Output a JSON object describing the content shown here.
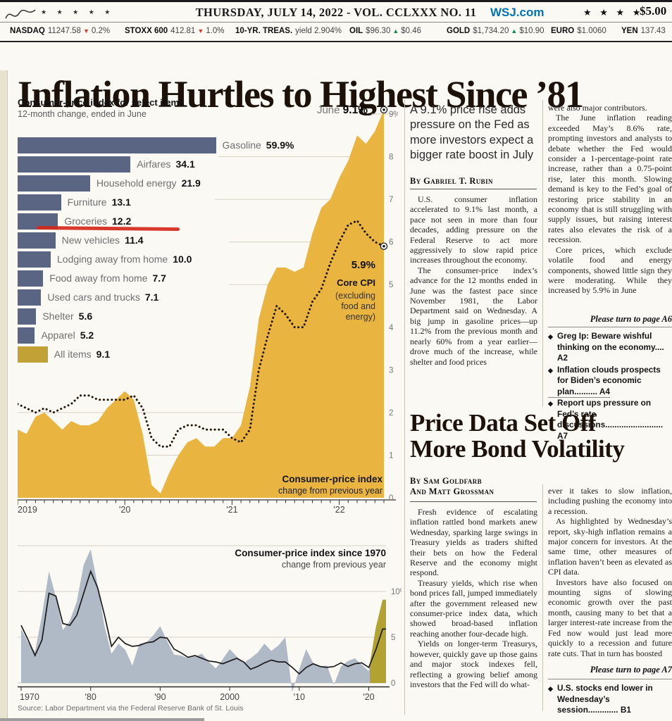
{
  "colors": {
    "gold": "#e9b440",
    "gold_dark": "#c2a136",
    "slate_blue": "#5a6584",
    "olive": "#b1a232",
    "gray_blue": "#b0bac6",
    "annotation_red": "#d5281b",
    "wsj_blue": "#0274b6",
    "up_green": "#0e8a4c",
    "down_red": "#d23b2e",
    "dotted_line": "#201505"
  },
  "masthead": {
    "signature_stars": "★ ★ ★ ★ ★",
    "date_line": "THURSDAY, JULY 14, 2022 - VOL. CCLXXX NO. 11",
    "site": "WSJ.com",
    "edition_stars": "★ ★ ★ ★",
    "price": "$5.00"
  },
  "ticker": [
    {
      "label": "NASDAQ",
      "value": "11247.58",
      "direction": "down",
      "change": "0.2%"
    },
    {
      "label": "STOXX 600",
      "value": "412.81",
      "direction": "down",
      "change": "1.0%"
    },
    {
      "label": "10-YR. TREAS.",
      "value": "yield 2.904%",
      "direction": null,
      "change": null
    },
    {
      "label": "OIL",
      "value": "$96.30",
      "direction": "up",
      "change": "$0.46"
    },
    {
      "label": "GOLD",
      "value": "$1,734.20",
      "direction": "up",
      "change": "$10.90"
    },
    {
      "label": "EURO",
      "value": "$1.0060",
      "direction": null,
      "change": null
    },
    {
      "label": "YEN",
      "value": "137.43",
      "direction": null,
      "change": null
    }
  ],
  "headline": "Inflation Hurtles to Highest Since ’81",
  "chart_block": {
    "source": "Source: Labor Department via the Federal Reserve Bank of St. Louis"
  },
  "chart_data": [
    {
      "type": "bar",
      "title": "Consumer-price index for select items",
      "subtitle": "12-month change, ended in June",
      "categories": [
        "Gasoline",
        "Airfares",
        "Household energy",
        "Furniture",
        "Groceries",
        "New vehicles",
        "Lodging away from home",
        "Food away from home",
        "Used cars and trucks",
        "Shelter",
        "Apparel",
        "All items"
      ],
      "values": [
        59.9,
        34.1,
        21.9,
        13.1,
        12.2,
        11.4,
        10.0,
        7.7,
        7.1,
        5.6,
        5.2,
        9.1
      ],
      "value_labels": [
        "59.9%",
        "34.1",
        "21.9",
        "13.1",
        "12.2",
        "11.4",
        "10.0",
        "7.7",
        "7.1",
        "5.6",
        "5.2",
        "9.1"
      ],
      "highlight_category": "All items",
      "annotation": {
        "type": "red-underline",
        "target": "Groceries"
      }
    },
    {
      "type": "area+line",
      "title": "Consumer-price index",
      "subtitle": "change from previous year",
      "frequency": "monthly",
      "x_start": "2019-01",
      "x_end": "2022-06",
      "x_tick_labels": [
        "2019",
        "'20",
        "'21",
        "'22"
      ],
      "ylim": [
        0,
        9
      ],
      "y_tick_labels": [
        "9%",
        "8",
        "7",
        "6",
        "5",
        "4",
        "3",
        "2",
        "1",
        "0"
      ],
      "series": [
        {
          "name": "Consumer-price index",
          "style": "area",
          "values": [
            1.6,
            1.5,
            1.9,
            2.0,
            1.8,
            1.6,
            1.8,
            1.7,
            1.7,
            1.8,
            2.1,
            2.3,
            2.5,
            2.3,
            1.5,
            0.3,
            0.1,
            0.6,
            1.0,
            1.3,
            1.4,
            1.2,
            1.2,
            1.4,
            1.4,
            1.7,
            2.6,
            4.2,
            5.0,
            5.4,
            5.4,
            5.3,
            5.4,
            6.2,
            6.8,
            7.0,
            7.5,
            7.9,
            8.5,
            8.3,
            8.6,
            9.1
          ]
        },
        {
          "name": "Core CPI (excluding food and energy)",
          "style": "dotted-line",
          "values": [
            2.2,
            2.1,
            2.0,
            2.1,
            2.0,
            2.1,
            2.2,
            2.4,
            2.4,
            2.3,
            2.3,
            2.3,
            2.3,
            2.4,
            2.1,
            1.4,
            1.2,
            1.2,
            1.6,
            1.7,
            1.7,
            1.6,
            1.6,
            1.6,
            1.4,
            1.3,
            1.6,
            3.0,
            3.8,
            4.5,
            4.3,
            4.0,
            4.0,
            4.6,
            4.9,
            5.5,
            6.0,
            6.4,
            6.5,
            6.2,
            6.0,
            5.9
          ]
        }
      ],
      "annotations": {
        "peak_label_prefix": "June",
        "peak_label_value": "9.1%",
        "peak_axis_label": "9%",
        "core_value_label": "5.9%",
        "core_name": "Core CPI",
        "core_paren": [
          "(excluding",
          "food and",
          "energy)"
        ],
        "area_label": "Consumer-price index",
        "area_sublabel": "change from previous year"
      }
    },
    {
      "type": "area+line",
      "title": "Consumer-price index since 1970",
      "subtitle": "change from previous year",
      "frequency": "yearly",
      "years_start": 1970,
      "x_tick_labels": [
        "1970",
        "'80",
        "'90",
        "2000",
        "'10",
        "'20"
      ],
      "ylim": [
        -1,
        15
      ],
      "y_tick_labels": [
        "10%",
        "5",
        "0"
      ],
      "highlight_from_year": 2020,
      "series": [
        {
          "name": "CPI 12-month change (area)",
          "style": "area",
          "values": [
            5.9,
            4.4,
            3.4,
            7.4,
            12.2,
            9.4,
            5.8,
            6.8,
            8.9,
            12.9,
            14.6,
            10.7,
            6.2,
            3.2,
            4.3,
            3.6,
            1.9,
            4.3,
            4.4,
            5.2,
            6.2,
            4.6,
            3.1,
            3.0,
            2.7,
            2.9,
            3.2,
            2.3,
            1.6,
            2.6,
            3.7,
            2.9,
            2.2,
            2.7,
            3.3,
            4.3,
            3.5,
            4.1,
            5.0,
            -1.0,
            1.5,
            3.7,
            2.2,
            1.8,
            1.9,
            -0.2,
            1.8,
            2.4,
            2.7,
            2.0,
            1.3,
            6.0,
            9.1
          ]
        },
        {
          "name": "CPI trend (line)",
          "style": "line",
          "values": [
            6.3,
            4.7,
            3.0,
            4.7,
            9.8,
            9.5,
            6.5,
            6.3,
            7.4,
            9.8,
            12.2,
            10.4,
            7.4,
            4.0,
            5.0,
            4.3,
            4.0,
            4.1,
            4.4,
            4.5,
            5.0,
            4.9,
            3.7,
            3.3,
            2.8,
            3.0,
            2.7,
            2.4,
            2.3,
            2.1,
            2.4,
            2.7,
            2.3,
            1.5,
            1.8,
            2.2,
            2.5,
            2.3,
            2.3,
            1.7,
            1.0,
            1.7,
            2.1,
            1.8,
            1.7,
            1.8,
            2.2,
            1.8,
            2.1,
            2.2,
            1.7,
            3.6,
            5.9
          ]
        }
      ]
    }
  ],
  "article1": {
    "deck": "A 9.1% price rise adds pressure on the Fed as more investors expect a bigger rate boost in July",
    "byline": "By Gabriel T. Rubin",
    "col1_paragraphs": [
      "U.S. consumer inflation accelerated to 9.1% last month, a pace not seen in more than four decades, adding pressure on the Federal Reserve to act more aggressively to slow rapid price increases throughout the economy.",
      "The consumer-price index’s advance for the 12 months ended in June was the fastest pace since November 1981, the Labor Department said on Wednesday. A big jump in gasoline prices—up 11.2% from the previous month and nearly 60% from a year earlier—drove much of the increase, while shelter and food prices"
    ],
    "col2_paragraphs": [
      "were also major contributors.",
      "The June inflation reading exceeded May’s 8.6% rate, prompting investors and analysts to debate whether the Fed would consider a 1-percentage-point rate increase, rather than a 0.75-point rise, later this month. Slowing demand is key to the Fed’s goal of restoring price stability in an economy that is still struggling with supply issues, but raising interest rates also elevates the risk of a recession.",
      "Core prices, which exclude volatile food and energy components, showed little sign they were moderating. While they increased by 5.9% in June"
    ],
    "turn": "Please turn to page A6",
    "links": [
      {
        "text": "Greg Ip: Beware wishful thinking on the economy....",
        "page": "A2"
      },
      {
        "text": "Inflation clouds prospects for Biden’s economic plan..........",
        "page": "A4"
      },
      {
        "text": "Report ups pressure on Fed’s rate discussions.........................",
        "page": "A7"
      }
    ]
  },
  "article2": {
    "headline_line1": "Price Data Set Off",
    "headline_line2": "More Bond Volatility",
    "byline_line1": "By Sam Goldfarb",
    "byline_line2": "And Matt Grossman",
    "col1_paragraphs": [
      "Fresh evidence of escalating inflation rattled bond markets anew Wednesday, sparking large swings in Treasury yields as traders shifted their bets on how the Federal Reserve and the economy might respond.",
      "Treasury yields, which rise when bond prices fall, jumped immediately after the government released new consumer-price index data, which showed broad-based inflation reaching another four-decade high.",
      "Yields on longer-term Treasurys, however, quickly gave up those gains and major stock indexes fell, reflecting a growing belief among investors that the Fed will do what-"
    ],
    "col2_paragraphs": [
      "ever it takes to slow inflation, including pushing the economy into a recession.",
      "As highlighted by Wednesday’s report, sky-high inflation remains a major concern for investors. At the same time, other measures of inflation haven’t been as elevated as CPI data.",
      "Investors have also focused on mounting signs of slowing economic growth over the past month, causing many to bet that a larger interest-rate increase from the Fed now would just lead more quickly to a recession and future rate cuts. That in turn has boosted"
    ],
    "turn": "Please turn to page A7",
    "links": [
      {
        "text": "U.S. stocks end lower in Wednesday’s session.............",
        "page": "B1"
      }
    ]
  }
}
